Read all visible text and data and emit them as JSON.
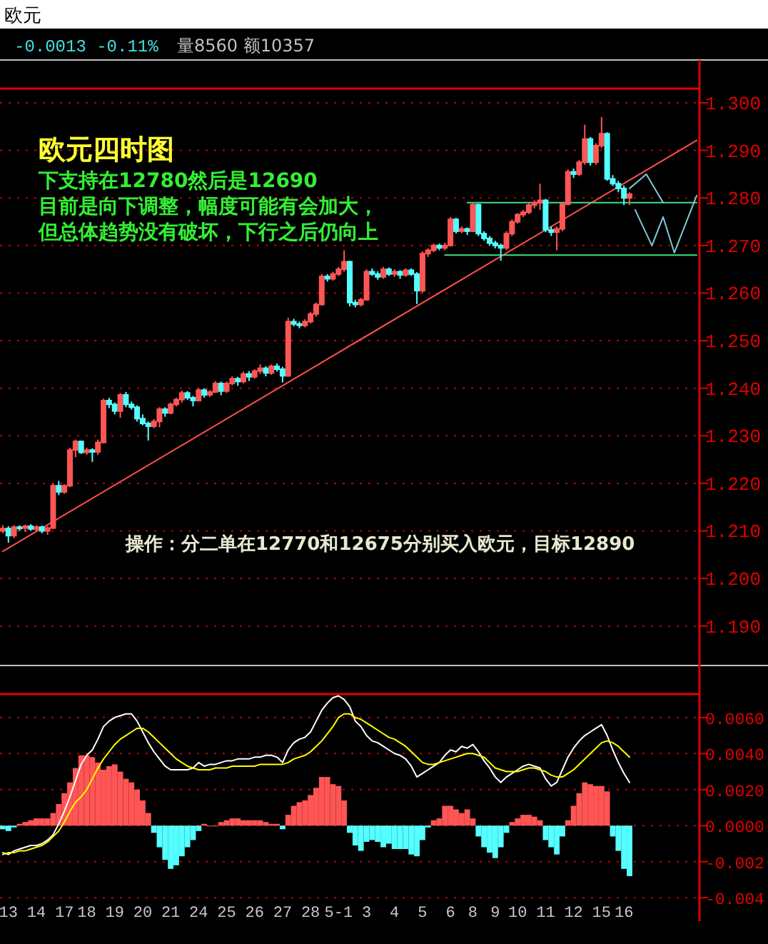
{
  "chart_data": [
    {
      "type": "candlestick",
      "title": "欧元四时图",
      "annotations": [
        "欧元",
        "-0.0013 -0.11%",
        "量8560 额10357",
        "下支持在12780然后是12690",
        "目前是向下调整，幅度可能有会加大，",
        "但总体趋势没有破坏，下行之后仍向上",
        "操作：分二单在12770和12675分别买入欧元，目标12890"
      ],
      "categories": [
        null,
        null,
        null,
        null,
        null,
        null,
        null,
        null,
        null,
        null,
        null,
        null,
        null,
        null,
        null,
        null,
        null,
        null,
        null,
        null,
        null,
        null,
        null,
        null,
        null,
        null,
        null,
        null,
        null,
        null,
        null,
        null,
        null,
        null,
        null,
        null,
        null,
        null,
        null,
        null,
        null,
        null,
        null,
        null,
        null,
        null,
        null,
        null,
        null,
        null,
        null,
        null,
        null,
        null,
        null,
        null,
        null,
        null,
        null,
        null,
        null,
        null,
        null,
        null,
        null,
        null,
        null,
        null,
        null,
        null,
        null,
        null,
        null,
        null,
        null,
        null,
        null,
        null,
        null,
        null,
        null,
        null,
        null,
        null,
        null,
        null,
        null,
        null,
        null,
        null,
        null,
        null,
        null,
        null,
        null,
        null,
        null,
        null,
        null,
        null,
        null,
        null,
        null,
        null,
        null,
        null,
        null,
        null,
        null,
        null,
        null,
        null,
        null,
        null,
        null,
        null,
        null,
        null,
        null,
        null,
        null,
        null,
        null,
        null,
        null
      ],
      "ohlc": [
        [
          1.21,
          1.2112,
          1.2095,
          1.2105
        ],
        [
          1.2105,
          1.211,
          1.2075,
          1.209
        ],
        [
          1.209,
          1.2112,
          1.2085,
          1.2108
        ],
        [
          1.2108,
          1.2112,
          1.21,
          1.2106
        ],
        [
          1.2106,
          1.2113,
          1.2098,
          1.211
        ],
        [
          1.211,
          1.2114,
          1.21,
          1.2104
        ],
        [
          1.2104,
          1.2112,
          1.2098,
          1.2108
        ],
        [
          1.2108,
          1.2111,
          1.2095,
          1.21
        ],
        [
          1.21,
          1.211,
          1.2092,
          1.2106
        ],
        [
          1.2106,
          1.22,
          1.2104,
          1.2195
        ],
        [
          1.2195,
          1.2205,
          1.2175,
          1.2182
        ],
        [
          1.2182,
          1.2198,
          1.2178,
          1.2195
        ],
        [
          1.2195,
          1.2275,
          1.2192,
          1.227
        ],
        [
          1.227,
          1.2292,
          1.2255,
          1.2288
        ],
        [
          1.2288,
          1.229,
          1.2262,
          1.2265
        ],
        [
          1.2265,
          1.2275,
          1.226,
          1.227
        ],
        [
          1.227,
          1.2274,
          1.2245,
          1.2266
        ],
        [
          1.2266,
          1.2292,
          1.226,
          1.2286
        ],
        [
          1.2286,
          1.2378,
          1.2284,
          1.2374
        ],
        [
          1.2374,
          1.238,
          1.2358,
          1.2366
        ],
        [
          1.2366,
          1.237,
          1.2345,
          1.2352
        ],
        [
          1.2352,
          1.239,
          1.2338,
          1.2386
        ],
        [
          1.2386,
          1.2392,
          1.236,
          1.2366
        ],
        [
          1.2366,
          1.2372,
          1.2355,
          1.236
        ],
        [
          1.236,
          1.2364,
          1.233,
          1.2336
        ],
        [
          1.2336,
          1.2345,
          1.2322,
          1.2326
        ],
        [
          1.2326,
          1.233,
          1.229,
          1.232
        ],
        [
          1.232,
          1.2335,
          1.2316,
          1.233
        ],
        [
          1.233,
          1.236,
          1.2318,
          1.2356
        ],
        [
          1.2356,
          1.236,
          1.234,
          1.2348
        ],
        [
          1.2348,
          1.237,
          1.2345,
          1.2366
        ],
        [
          1.2366,
          1.238,
          1.2362,
          1.2376
        ],
        [
          1.2376,
          1.2395,
          1.237,
          1.239
        ],
        [
          1.239,
          1.2394,
          1.2375,
          1.238
        ],
        [
          1.238,
          1.2384,
          1.2362,
          1.2374
        ],
        [
          1.2374,
          1.24,
          1.2372,
          1.2396
        ],
        [
          1.2396,
          1.24,
          1.238,
          1.2386
        ],
        [
          1.2386,
          1.2396,
          1.2382,
          1.2392
        ],
        [
          1.2392,
          1.2415,
          1.239,
          1.241
        ],
        [
          1.241,
          1.2414,
          1.2385,
          1.2394
        ],
        [
          1.2394,
          1.2414,
          1.239,
          1.241
        ],
        [
          1.241,
          1.2425,
          1.2406,
          1.242
        ],
        [
          1.242,
          1.2424,
          1.2405,
          1.2414
        ],
        [
          1.2414,
          1.2435,
          1.241,
          1.243
        ],
        [
          1.243,
          1.2436,
          1.2415,
          1.2424
        ],
        [
          1.2424,
          1.244,
          1.242,
          1.2436
        ],
        [
          1.2436,
          1.245,
          1.243,
          1.2442
        ],
        [
          1.2442,
          1.2446,
          1.2425,
          1.2432
        ],
        [
          1.2432,
          1.245,
          1.2428,
          1.2446
        ],
        [
          1.2446,
          1.2452,
          1.2435,
          1.244
        ],
        [
          1.244,
          1.2445,
          1.2412,
          1.2426
        ],
        [
          1.2426,
          1.2548,
          1.2424,
          1.254
        ],
        [
          1.254,
          1.2546,
          1.253,
          1.2535
        ],
        [
          1.2535,
          1.254,
          1.2526,
          1.2532
        ],
        [
          1.2532,
          1.2545,
          1.2528,
          1.254
        ],
        [
          1.254,
          1.256,
          1.2536,
          1.2556
        ],
        [
          1.2556,
          1.258,
          1.255,
          1.2576
        ],
        [
          1.2576,
          1.264,
          1.2574,
          1.2635
        ],
        [
          1.2635,
          1.264,
          1.2624,
          1.263
        ],
        [
          1.263,
          1.2645,
          1.2626,
          1.264
        ],
        [
          1.264,
          1.2655,
          1.2636,
          1.265
        ],
        [
          1.265,
          1.269,
          1.2645,
          1.2666
        ],
        [
          1.2666,
          1.2668,
          1.2572,
          1.258
        ],
        [
          1.258,
          1.2586,
          1.257,
          1.2576
        ],
        [
          1.2576,
          1.259,
          1.2572,
          1.2586
        ],
        [
          1.2586,
          1.265,
          1.2584,
          1.2645
        ],
        [
          1.2645,
          1.2652,
          1.2636,
          1.264
        ],
        [
          1.264,
          1.2646,
          1.2628,
          1.2634
        ],
        [
          1.2634,
          1.2655,
          1.263,
          1.265
        ],
        [
          1.265,
          1.2654,
          1.2636,
          1.264
        ],
        [
          1.264,
          1.265,
          1.2634,
          1.2645
        ],
        [
          1.2645,
          1.2648,
          1.263,
          1.2638
        ],
        [
          1.2638,
          1.2652,
          1.2634,
          1.2648
        ],
        [
          1.2648,
          1.2652,
          1.2636,
          1.264
        ],
        [
          1.264,
          1.2644,
          1.2577,
          1.2605
        ],
        [
          1.2605,
          1.2688,
          1.26,
          1.2683
        ],
        [
          1.2683,
          1.2694,
          1.2676,
          1.269
        ],
        [
          1.269,
          1.2704,
          1.2686,
          1.27
        ],
        [
          1.27,
          1.2704,
          1.269,
          1.2695
        ],
        [
          1.2695,
          1.2706,
          1.269,
          1.27
        ],
        [
          1.27,
          1.276,
          1.2698,
          1.2755
        ],
        [
          1.2755,
          1.2758,
          1.2725,
          1.273
        ],
        [
          1.273,
          1.274,
          1.2726,
          1.2735
        ],
        [
          1.2735,
          1.2738,
          1.2722,
          1.273
        ],
        [
          1.273,
          1.279,
          1.2728,
          1.2786
        ],
        [
          1.2786,
          1.2788,
          1.272,
          1.2725
        ],
        [
          1.2725,
          1.273,
          1.271,
          1.2715
        ],
        [
          1.2715,
          1.272,
          1.27,
          1.2705
        ],
        [
          1.2705,
          1.271,
          1.2694,
          1.27
        ],
        [
          1.27,
          1.2704,
          1.2668,
          1.2695
        ],
        [
          1.2695,
          1.273,
          1.269,
          1.2725
        ],
        [
          1.2725,
          1.2755,
          1.272,
          1.275
        ],
        [
          1.275,
          1.2768,
          1.2746,
          1.2765
        ],
        [
          1.2765,
          1.2775,
          1.276,
          1.277
        ],
        [
          1.277,
          1.279,
          1.2766,
          1.2785
        ],
        [
          1.2785,
          1.2795,
          1.2778,
          1.279
        ],
        [
          1.279,
          1.283,
          1.2775,
          1.2795
        ],
        [
          1.2795,
          1.2798,
          1.2728,
          1.2733
        ],
        [
          1.2733,
          1.274,
          1.272,
          1.2728
        ],
        [
          1.2728,
          1.274,
          1.269,
          1.2735
        ],
        [
          1.2735,
          1.2792,
          1.273,
          1.2787
        ],
        [
          1.2787,
          1.286,
          1.2784,
          1.2855
        ],
        [
          1.2855,
          1.2862,
          1.2842,
          1.285
        ],
        [
          1.285,
          1.288,
          1.2846,
          1.2875
        ],
        [
          1.2875,
          1.2954,
          1.287,
          1.2924
        ],
        [
          1.2924,
          1.2928,
          1.2868,
          1.2875
        ],
        [
          1.2875,
          1.2915,
          1.287,
          1.291
        ],
        [
          1.291,
          1.297,
          1.2905,
          1.2935
        ],
        [
          1.2935,
          1.2938,
          1.2836,
          1.284
        ],
        [
          1.284,
          1.2848,
          1.2825,
          1.283
        ],
        [
          1.283,
          1.2836,
          1.2812,
          1.282
        ],
        [
          1.282,
          1.2826,
          1.2785,
          1.28
        ],
        [
          1.28,
          1.2812,
          1.2785,
          1.2808
        ],
        null,
        null,
        null,
        null,
        null,
        null,
        null,
        null,
        null,
        null,
        null,
        null
      ],
      "series": [
        {
          "type": "line",
          "color": "#ff5050",
          "values": [
            1.2057,
            null,
            null,
            null,
            null,
            null,
            null,
            null,
            null,
            null,
            null,
            null,
            null,
            null,
            null,
            null,
            null,
            null,
            null,
            null,
            null,
            null,
            null,
            null,
            null,
            null,
            null,
            null,
            null,
            null,
            null,
            null,
            null,
            null,
            null,
            null,
            null,
            null,
            null,
            null,
            null,
            null,
            null,
            null,
            null,
            null,
            null,
            null,
            null,
            null,
            null,
            null,
            null,
            null,
            null,
            null,
            null,
            null,
            null,
            null,
            null,
            null,
            null,
            null,
            null,
            null,
            null,
            null,
            null,
            null,
            null,
            null,
            null,
            null,
            null,
            null,
            null,
            null,
            null,
            null,
            null,
            null,
            null,
            null,
            null,
            null,
            null,
            null,
            null,
            null,
            null,
            null,
            null,
            null,
            null,
            null,
            null,
            null,
            null,
            null,
            null,
            null,
            null,
            null,
            null,
            null,
            null,
            null,
            null,
            null,
            null,
            null,
            null,
            null,
            null,
            null,
            null,
            null,
            null,
            null,
            null,
            null,
            null,
            null,
            1.2921
          ]
        },
        {
          "type": "line",
          "color": "#40e080",
          "values": [
            null,
            null,
            null,
            null,
            null,
            null,
            null,
            null,
            null,
            null,
            null,
            null,
            null,
            null,
            null,
            null,
            null,
            null,
            null,
            null,
            null,
            null,
            null,
            null,
            null,
            null,
            null,
            null,
            null,
            null,
            null,
            null,
            null,
            null,
            null,
            null,
            null,
            null,
            null,
            null,
            null,
            null,
            null,
            null,
            null,
            null,
            null,
            null,
            null,
            null,
            null,
            null,
            null,
            null,
            null,
            null,
            null,
            null,
            null,
            null,
            null,
            null,
            null,
            null,
            null,
            null,
            null,
            null,
            null,
            null,
            null,
            null,
            null,
            null,
            null,
            null,
            null,
            null,
            null,
            null,
            null,
            null,
            null,
            1.279,
            null,
            null,
            null,
            null,
            null,
            null,
            null,
            null,
            null,
            null,
            null,
            null,
            null,
            null,
            null,
            null,
            null,
            null,
            null,
            null,
            null,
            null,
            null,
            null,
            null,
            null,
            null,
            null,
            null,
            null,
            null,
            null,
            null,
            null,
            null,
            null,
            null,
            null,
            null,
            null,
            1.279
          ]
        },
        {
          "type": "line",
          "color": "#40e080",
          "values": [
            null,
            null,
            null,
            null,
            null,
            null,
            null,
            null,
            null,
            null,
            null,
            null,
            null,
            null,
            null,
            null,
            null,
            null,
            null,
            null,
            null,
            null,
            null,
            null,
            null,
            null,
            null,
            null,
            null,
            null,
            null,
            null,
            null,
            null,
            null,
            null,
            null,
            null,
            null,
            null,
            null,
            null,
            null,
            null,
            null,
            null,
            null,
            null,
            null,
            null,
            null,
            null,
            null,
            null,
            null,
            null,
            null,
            null,
            null,
            null,
            null,
            null,
            null,
            null,
            null,
            null,
            null,
            null,
            null,
            null,
            null,
            null,
            null,
            null,
            null,
            null,
            null,
            null,
            null,
            1.268,
            null,
            null,
            null,
            null,
            null,
            null,
            null,
            null,
            null,
            null,
            null,
            null,
            null,
            null,
            null,
            null,
            null,
            null,
            null,
            null,
            null,
            null,
            null,
            null,
            null,
            null,
            null,
            null,
            null,
            null,
            null,
            null,
            null,
            null,
            null,
            null,
            null,
            null,
            null,
            null,
            null,
            null,
            null,
            null,
            1.268
          ]
        },
        {
          "type": "line",
          "color": "#80c8d8",
          "values": [
            null,
            null,
            null,
            null,
            null,
            null,
            null,
            null,
            null,
            null,
            null,
            null,
            null,
            null,
            null,
            null,
            null,
            null,
            null,
            null,
            null,
            null,
            null,
            null,
            null,
            null,
            null,
            null,
            null,
            null,
            null,
            null,
            null,
            null,
            null,
            null,
            null,
            null,
            null,
            null,
            null,
            null,
            null,
            null,
            null,
            null,
            null,
            null,
            null,
            null,
            null,
            null,
            null,
            null,
            null,
            null,
            null,
            null,
            null,
            null,
            null,
            null,
            null,
            null,
            null,
            null,
            null,
            null,
            null,
            null,
            null,
            null,
            null,
            null,
            null,
            null,
            null,
            null,
            null,
            null,
            null,
            null,
            null,
            null,
            null,
            null,
            null,
            null,
            null,
            null,
            null,
            null,
            null,
            null,
            null,
            null,
            null,
            null,
            null,
            null,
            null,
            null,
            null,
            null,
            null,
            null,
            null,
            null,
            null,
            null,
            null,
            null,
            1.282,
            null,
            null,
            1.285,
            null,
            null,
            1.279,
            null,
            null,
            null,
            null,
            null,
            null
          ]
        },
        {
          "type": "line",
          "color": "#80c8d8",
          "values": [
            null,
            null,
            null,
            null,
            null,
            null,
            null,
            null,
            null,
            null,
            null,
            null,
            null,
            null,
            null,
            null,
            null,
            null,
            null,
            null,
            null,
            null,
            null,
            null,
            null,
            null,
            null,
            null,
            null,
            null,
            null,
            null,
            null,
            null,
            null,
            null,
            null,
            null,
            null,
            null,
            null,
            null,
            null,
            null,
            null,
            null,
            null,
            null,
            null,
            null,
            null,
            null,
            null,
            null,
            null,
            null,
            null,
            null,
            null,
            null,
            null,
            null,
            null,
            null,
            null,
            null,
            null,
            null,
            null,
            null,
            null,
            null,
            null,
            null,
            null,
            null,
            null,
            null,
            null,
            null,
            null,
            null,
            null,
            null,
            null,
            null,
            null,
            null,
            null,
            null,
            null,
            null,
            null,
            null,
            null,
            null,
            null,
            null,
            null,
            null,
            null,
            null,
            null,
            null,
            null,
            null,
            null,
            null,
            null,
            null,
            null,
            null,
            null,
            1.2775,
            null,
            null,
            1.27,
            null,
            1.276,
            null,
            1.2685,
            null,
            null,
            null,
            1.2805
          ]
        }
      ],
      "ylim": [
        1.182,
        1.303
      ],
      "yticks": [
        {
          "value": 1.19,
          "label": "1.190"
        },
        {
          "value": 1.2,
          "label": "1.200"
        },
        {
          "value": 1.21,
          "label": "1.210"
        },
        {
          "value": 1.22,
          "label": "1.220"
        },
        {
          "value": 1.23,
          "label": "1.230"
        },
        {
          "value": 1.24,
          "label": "1.240"
        },
        {
          "value": 1.25,
          "label": "1.250"
        },
        {
          "value": 1.26,
          "label": "1.260"
        },
        {
          "value": 1.27,
          "label": "1.270"
        },
        {
          "value": 1.28,
          "label": "1.280"
        },
        {
          "value": 1.29,
          "label": "1.290"
        },
        {
          "value": 1.3,
          "label": "1.300"
        }
      ],
      "grid": "y",
      "tick_labels": "y"
    },
    {
      "type": "bar",
      "categories": [
        null,
        "13",
        null,
        null,
        null,
        null,
        "14",
        null,
        null,
        null,
        null,
        "17",
        null,
        null,
        null,
        "18",
        null,
        null,
        null,
        null,
        "19",
        null,
        null,
        null,
        null,
        "20",
        null,
        null,
        null,
        null,
        "21",
        null,
        null,
        null,
        null,
        "24",
        null,
        null,
        null,
        null,
        "25",
        null,
        null,
        null,
        null,
        "26",
        null,
        null,
        null,
        null,
        "27",
        null,
        null,
        null,
        null,
        "28",
        null,
        null,
        null,
        null,
        "5-1",
        null,
        null,
        null,
        null,
        "3",
        null,
        null,
        null,
        null,
        "4",
        null,
        null,
        null,
        null,
        "5",
        null,
        null,
        null,
        null,
        "6",
        null,
        null,
        null,
        "8",
        null,
        null,
        null,
        "9",
        null,
        null,
        null,
        "10",
        null,
        null,
        null,
        null,
        "11",
        null,
        null,
        null,
        null,
        "12",
        null,
        null,
        null,
        null,
        "15",
        null,
        null,
        null,
        "16",
        null,
        null,
        null,
        null,
        null,
        null,
        null,
        null,
        null,
        null,
        null,
        null,
        null
      ],
      "series": [
        {
          "type": "bar",
          "values": [
            -0.0002,
            -0.0003,
            -0.0001,
            0.0001,
            0.0002,
            0.0003,
            0.0004,
            0.0004,
            0.0004,
            0.0007,
            0.0012,
            0.0018,
            0.0024,
            0.0032,
            0.0039,
            0.0039,
            0.0038,
            0.0035,
            0.0031,
            0.0033,
            0.0034,
            0.003,
            0.0026,
            0.0024,
            0.002,
            0.0014,
            0.0007,
            -0.0004,
            -0.0012,
            -0.0019,
            -0.0024,
            -0.0022,
            -0.0017,
            -0.0012,
            -0.0008,
            -0.0003,
            0.0001,
            0.0,
            0.0,
            0.0002,
            0.0003,
            0.0004,
            0.0004,
            0.0003,
            0.0003,
            0.0003,
            0.0003,
            0.0002,
            0.0001,
            0.0001,
            -0.0002,
            0.0006,
            0.0011,
            0.0013,
            0.0014,
            0.0017,
            0.0021,
            0.0027,
            0.0027,
            0.0023,
            0.0022,
            0.0014,
            -0.0004,
            -0.0011,
            -0.0014,
            -0.0009,
            -0.0008,
            -0.0009,
            -0.0012,
            -0.001,
            -0.0013,
            -0.0013,
            -0.0013,
            -0.0016,
            -0.0017,
            -0.0008,
            -0.0001,
            0.0003,
            0.0004,
            0.0011,
            0.0011,
            0.0009,
            0.0007,
            0.0009,
            0.0004,
            -0.0006,
            -0.0012,
            -0.0015,
            -0.0018,
            -0.0012,
            -0.0004,
            0.0002,
            0.0004,
            0.0006,
            0.0006,
            0.0005,
            0.0003,
            -0.0008,
            -0.0012,
            -0.0016,
            -0.0006,
            0.0003,
            0.0011,
            0.0018,
            0.0024,
            0.0023,
            0.0022,
            0.0022,
            0.0019,
            -0.0006,
            -0.0014,
            -0.0024,
            -0.0028,
            null,
            null,
            null,
            null,
            null,
            null,
            null,
            null,
            null,
            null,
            null,
            null
          ],
          "colors": [
            "#55ffff",
            "#55ffff",
            "#55ffff",
            "#ff5555",
            "#ff5555",
            "#ff5555",
            "#ff5555",
            "#ff5555",
            "#ff5555",
            "#ff5555",
            "#ff5555",
            "#ff5555",
            "#ff5555",
            "#ff5555",
            "#ff5555",
            "#ff5555",
            "#ff5555",
            "#ff5555",
            "#ff5555",
            "#ff5555",
            "#ff5555",
            "#ff5555",
            "#ff5555",
            "#ff5555",
            "#ff5555",
            "#ff5555",
            "#ff5555",
            "#55ffff",
            "#55ffff",
            "#55ffff",
            "#55ffff",
            "#55ffff",
            "#55ffff",
            "#55ffff",
            "#55ffff",
            "#55ffff",
            "#ff5555",
            "#ff5555",
            "#ff5555",
            "#ff5555",
            "#ff5555",
            "#ff5555",
            "#ff5555",
            "#ff5555",
            "#ff5555",
            "#ff5555",
            "#ff5555",
            "#ff5555",
            "#ff5555",
            "#ff5555",
            "#55ffff",
            "#ff5555",
            "#ff5555",
            "#ff5555",
            "#ff5555",
            "#ff5555",
            "#ff5555",
            "#ff5555",
            "#ff5555",
            "#ff5555",
            "#ff5555",
            "#ff5555",
            "#55ffff",
            "#55ffff",
            "#55ffff",
            "#55ffff",
            "#55ffff",
            "#55ffff",
            "#55ffff",
            "#55ffff",
            "#55ffff",
            "#55ffff",
            "#55ffff",
            "#55ffff",
            "#55ffff",
            "#55ffff",
            "#55ffff",
            "#ff5555",
            "#ff5555",
            "#ff5555",
            "#ff5555",
            "#ff5555",
            "#ff5555",
            "#ff5555",
            "#ff5555",
            "#55ffff",
            "#55ffff",
            "#55ffff",
            "#55ffff",
            "#55ffff",
            "#55ffff",
            "#ff5555",
            "#ff5555",
            "#ff5555",
            "#ff5555",
            "#ff5555",
            "#ff5555",
            "#55ffff",
            "#55ffff",
            "#55ffff",
            "#55ffff",
            "#ff5555",
            "#ff5555",
            "#ff5555",
            "#ff5555",
            "#ff5555",
            "#ff5555",
            "#ff5555",
            "#ff5555",
            "#55ffff",
            "#55ffff",
            "#55ffff",
            "#55ffff",
            null,
            null,
            null,
            null,
            null,
            null,
            null,
            null,
            null,
            null,
            null,
            null
          ]
        },
        {
          "type": "line",
          "color": "#ffffff",
          "values": [
            -0.0015,
            -0.0016,
            -0.0014,
            -0.0013,
            -0.0012,
            -0.0011,
            -0.0011,
            -0.001,
            -0.0008,
            -0.0005,
            0.0001,
            0.0008,
            0.0016,
            0.0025,
            0.0034,
            0.0039,
            0.0042,
            0.0048,
            0.0055,
            0.0058,
            0.006,
            0.0061,
            0.0062,
            0.0062,
            0.0058,
            0.0052,
            0.0046,
            0.0041,
            0.0037,
            0.0033,
            0.0031,
            0.0031,
            0.0031,
            0.0031,
            0.0032,
            0.0035,
            0.0033,
            0.0034,
            0.0034,
            0.0035,
            0.0036,
            0.0036,
            0.0037,
            0.0037,
            0.0037,
            0.0038,
            0.0038,
            0.0039,
            0.0039,
            0.0038,
            0.0035,
            0.0042,
            0.0046,
            0.0048,
            0.0049,
            0.0052,
            0.0058,
            0.0064,
            0.0068,
            0.0071,
            0.0072,
            0.007,
            0.0066,
            0.0058,
            0.0055,
            0.005,
            0.0047,
            0.0046,
            0.0044,
            0.0042,
            0.004,
            0.0039,
            0.0037,
            0.0033,
            0.0027,
            0.0029,
            0.0031,
            0.0033,
            0.0035,
            0.0039,
            0.0042,
            0.0041,
            0.0044,
            0.0043,
            0.0045,
            0.0041,
            0.0036,
            0.0032,
            0.0027,
            0.0024,
            0.0027,
            0.0029,
            0.0031,
            0.0033,
            0.0034,
            0.0033,
            0.0032,
            0.0026,
            0.0022,
            0.0024,
            0.0031,
            0.0038,
            0.0043,
            0.0047,
            0.005,
            0.0052,
            0.0054,
            0.0056,
            0.005,
            0.0042,
            0.0035,
            0.0029,
            0.0024,
            null,
            null,
            null,
            null,
            null,
            null,
            null,
            null,
            null,
            null,
            null,
            null
          ]
        },
        {
          "type": "line",
          "color": "#ffff00",
          "values": [
            -0.0016,
            -0.0015,
            -0.0015,
            -0.0014,
            -0.0014,
            -0.0013,
            -0.0012,
            -0.0011,
            -0.0009,
            -0.0006,
            -0.0003,
            0.0002,
            0.0008,
            0.0013,
            0.0016,
            0.002,
            0.0026,
            0.0032,
            0.0037,
            0.0041,
            0.0045,
            0.0048,
            0.005,
            0.0052,
            0.0054,
            0.0054,
            0.0052,
            0.0049,
            0.0046,
            0.0043,
            0.004,
            0.0037,
            0.0035,
            0.0033,
            0.0032,
            0.0031,
            0.0031,
            0.0031,
            0.0032,
            0.0032,
            0.0032,
            0.0033,
            0.0033,
            0.0033,
            0.0033,
            0.0033,
            0.0034,
            0.0034,
            0.0034,
            0.0034,
            0.0034,
            0.0035,
            0.0037,
            0.0038,
            0.0039,
            0.0041,
            0.0044,
            0.0047,
            0.0051,
            0.0055,
            0.006,
            0.0062,
            0.0062,
            0.006,
            0.0059,
            0.0057,
            0.0055,
            0.0053,
            0.0051,
            0.0049,
            0.0048,
            0.0046,
            0.0044,
            0.0041,
            0.0038,
            0.0035,
            0.0034,
            0.0034,
            0.0035,
            0.0036,
            0.0037,
            0.0038,
            0.0039,
            0.004,
            0.004,
            0.0039,
            0.0038,
            0.0035,
            0.0032,
            0.0031,
            0.003,
            0.003,
            0.003,
            0.0031,
            0.0032,
            0.0032,
            0.0031,
            0.003,
            0.0028,
            0.0027,
            0.0027,
            0.0029,
            0.0031,
            0.0034,
            0.0037,
            0.004,
            0.0043,
            0.0046,
            0.0047,
            0.0046,
            0.0044,
            0.0041,
            0.0038,
            null,
            null,
            null,
            null,
            null,
            null,
            null,
            null,
            null,
            null,
            null,
            null
          ]
        }
      ],
      "ylim": [
        -0.0053,
        0.0073
      ],
      "yticks": [
        {
          "value": 0.006,
          "label": "0.0060"
        },
        {
          "value": 0.004,
          "label": "0.0040"
        },
        {
          "value": 0.002,
          "label": "0.0020"
        },
        {
          "value": 0,
          "label": "0.0000"
        },
        {
          "value": -0.002,
          "label": "-0.002"
        },
        {
          "value": -0.004,
          "label": "-0.004"
        }
      ],
      "grid": "y"
    }
  ]
}
